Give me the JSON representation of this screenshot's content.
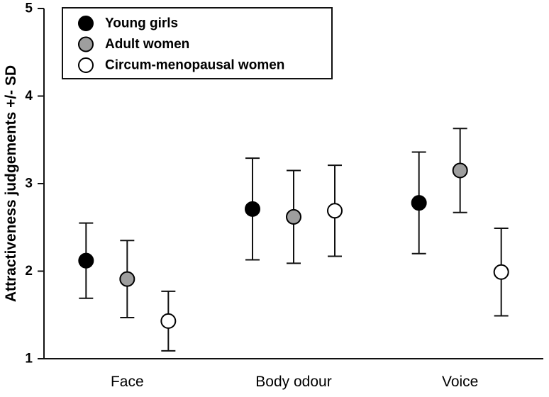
{
  "figure": {
    "background": "#ffffff",
    "axis_color": "#111111"
  },
  "chart_data": {
    "type": "scatter",
    "title": "",
    "xlabel": "",
    "ylabel": "Attractiveness judgements +/- SD",
    "ylim": [
      1,
      5
    ],
    "yticks": [
      1,
      2,
      3,
      4,
      5
    ],
    "grid": false,
    "legend_position": "top-left",
    "error_bars": "+/- SD",
    "categories": [
      "Face",
      "Body odour",
      "Voice"
    ],
    "series": [
      {
        "name": "Young girls",
        "marker_fill": "#000000",
        "marker_stroke": "#000000",
        "means": [
          2.12,
          2.71,
          2.78
        ],
        "sd": [
          0.43,
          0.58,
          0.58
        ]
      },
      {
        "name": "Adult women",
        "marker_fill": "#9e9e9e",
        "marker_stroke": "#000000",
        "means": [
          1.91,
          2.62,
          3.15
        ],
        "sd": [
          0.44,
          0.53,
          0.48
        ]
      },
      {
        "name": "Circum-menopausal women",
        "marker_fill": "#ffffff",
        "marker_stroke": "#000000",
        "means": [
          1.43,
          2.69,
          1.99
        ],
        "sd": [
          0.34,
          0.52,
          0.5
        ]
      }
    ]
  }
}
